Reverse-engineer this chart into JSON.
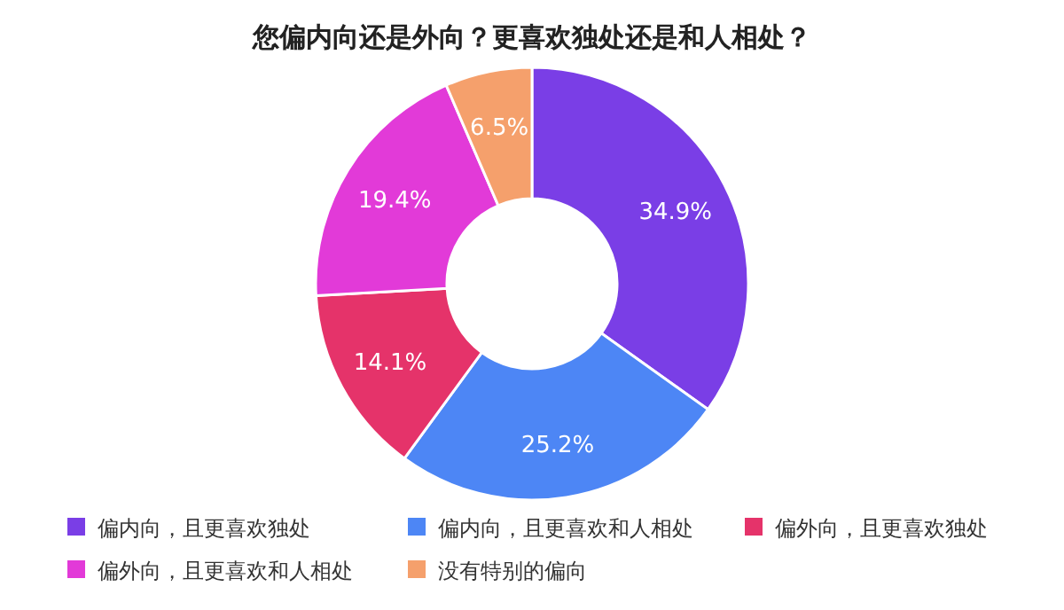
{
  "chart_data": {
    "type": "donut",
    "title": "您偏内向还是外向？更喜欢独处还是和人相处？",
    "categories": [
      "偏内向，且更喜欢独处",
      "偏内向，且更喜欢和人相处",
      "偏外向，且更喜欢独处",
      "偏外向，且更喜欢和人相处",
      "没有特别的偏向"
    ],
    "values": [
      34.9,
      25.2,
      14.1,
      19.4,
      6.5
    ],
    "colors": [
      "#7a3ee6",
      "#4d86f5",
      "#e5336a",
      "#e23ad8",
      "#f5a06c"
    ],
    "value_labels": [
      "34.9%",
      "25.2%",
      "14.1%",
      "19.4%",
      "6.5%"
    ],
    "legend": "bottom"
  }
}
